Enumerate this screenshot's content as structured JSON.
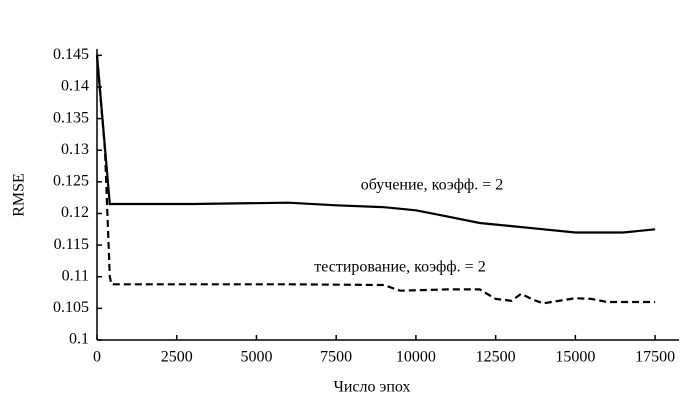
{
  "chart_data": {
    "type": "line",
    "x_label": "Число эпох",
    "y_label": "RMSE",
    "annotations": [
      "обучение, коэфф. = 2",
      "тестирование, коэфф. = 2"
    ],
    "xlim": [
      0,
      18250
    ],
    "ylim": [
      0.1,
      0.146
    ],
    "xticks": [
      0,
      2500,
      5000,
      7500,
      10000,
      12500,
      15000,
      17500
    ],
    "yticks": [
      0.1,
      0.105,
      0.11,
      0.115,
      0.12,
      0.125,
      0.13,
      0.135,
      0.14,
      0.145
    ],
    "series": [
      {
        "name": "обучение",
        "color": "#000000",
        "dash": false,
        "x": [
          0,
          400,
          3000,
          6000,
          7500,
          9000,
          10000,
          11000,
          12000,
          13000,
          14000,
          15000,
          16500,
          17500
        ],
        "values": [
          0.145,
          0.1215,
          0.1215,
          0.1217,
          0.1213,
          0.121,
          0.1205,
          0.1195,
          0.1185,
          0.118,
          0.1175,
          0.117,
          0.117,
          0.1175
        ]
      },
      {
        "name": "тестирование",
        "color": "#000000",
        "dash": true,
        "x": [
          0,
          250,
          400,
          450,
          3000,
          6000,
          9000,
          9500,
          11000,
          12000,
          12500,
          13000,
          13300,
          13700,
          14000,
          15000,
          15500,
          16000,
          17500
        ],
        "values": [
          0.145,
          0.13,
          0.11,
          0.1088,
          0.1088,
          0.1088,
          0.1087,
          0.1078,
          0.108,
          0.108,
          0.1065,
          0.1062,
          0.1073,
          0.1063,
          0.1058,
          0.1066,
          0.1065,
          0.106,
          0.106
        ]
      }
    ]
  }
}
